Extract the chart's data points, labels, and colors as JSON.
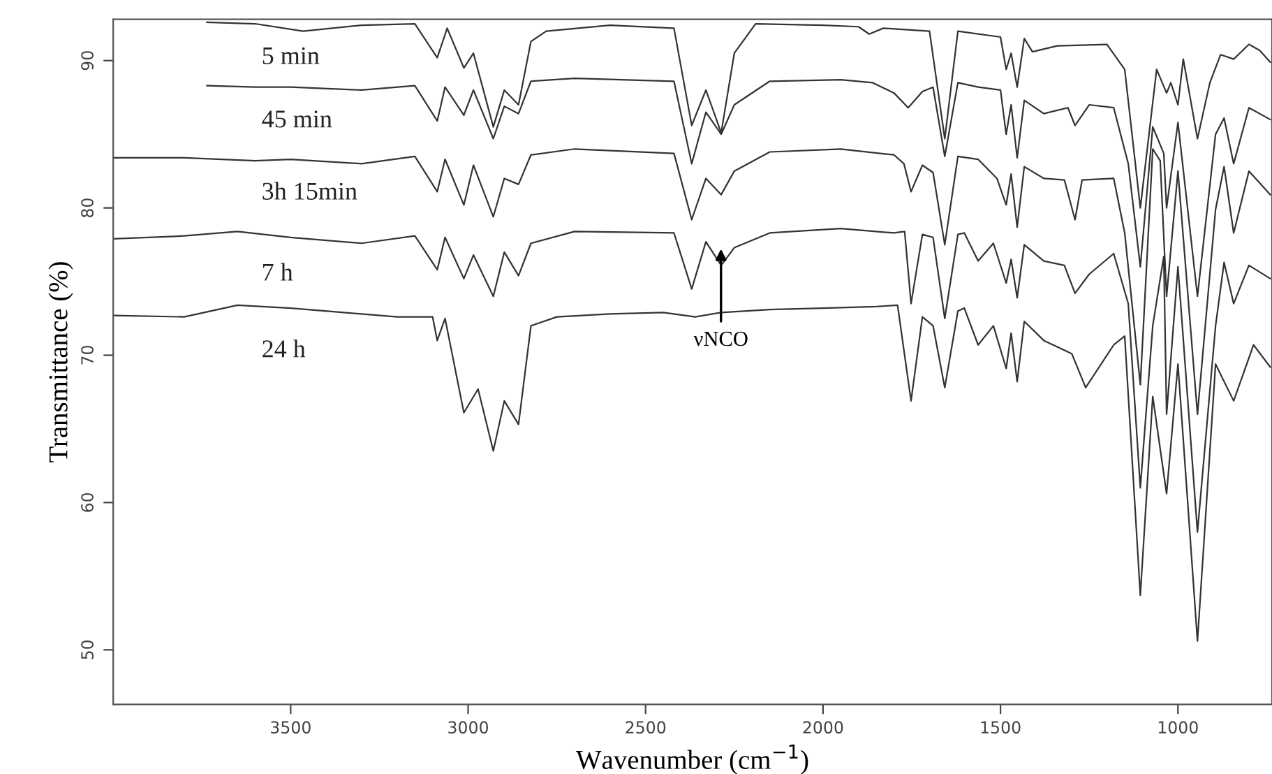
{
  "chart_data": {
    "type": "line",
    "xlabel": "Wavenumber (cm$^{−1}$)",
    "ylabel": "Transmittance (%)",
    "xlim": [
      4000,
      735
    ],
    "ylim": [
      46.3,
      92.8
    ],
    "xticks": [
      3500,
      3000,
      2500,
      2000,
      1500,
      1000
    ],
    "yticks": [
      50,
      60,
      70,
      80,
      90
    ],
    "grid": false,
    "legend": false,
    "marker": "none",
    "line_style": "solid",
    "annotations": [
      "νNCO"
    ],
    "series": [
      {
        "name": "5 min",
        "color": "#333333",
        "x": [
          3736,
          3600,
          3465,
          3300,
          3150,
          3087,
          3059,
          3012,
          2985,
          2929,
          2898,
          2858,
          2823,
          2780,
          2600,
          2420,
          2370,
          2330,
          2287,
          2250,
          2190,
          2000,
          1900,
          1870,
          1830,
          1700,
          1657,
          1620,
          1500,
          1484,
          1470,
          1453,
          1433,
          1410,
          1340,
          1200,
          1150,
          1106,
          1060,
          1032,
          1020,
          1000,
          985,
          945,
          910,
          880,
          843,
          800,
          770,
          740
        ],
        "values": [
          92.6,
          92.5,
          92.0,
          92.4,
          92.5,
          90.2,
          92.2,
          89.5,
          90.5,
          85.5,
          88.0,
          87.0,
          91.3,
          92.0,
          92.4,
          92.2,
          85.6,
          88.0,
          85.1,
          90.5,
          92.5,
          92.4,
          92.3,
          91.8,
          92.2,
          92.0,
          84.7,
          92.0,
          91.6,
          89.4,
          90.5,
          88.2,
          91.5,
          90.6,
          91.0,
          91.1,
          89.4,
          80.0,
          89.4,
          87.8,
          88.5,
          87.0,
          90.1,
          84.7,
          88.5,
          90.4,
          90.1,
          91.1,
          90.7,
          89.9
        ]
      },
      {
        "name": "45 min",
        "color": "#333333",
        "x": [
          3736,
          3600,
          3500,
          3300,
          3150,
          3087,
          3065,
          3012,
          2985,
          2929,
          2898,
          2858,
          2823,
          2700,
          2420,
          2370,
          2330,
          2287,
          2250,
          2150,
          1950,
          1860,
          1800,
          1760,
          1720,
          1690,
          1657,
          1620,
          1563,
          1500,
          1484,
          1470,
          1453,
          1433,
          1378,
          1310,
          1290,
          1250,
          1181,
          1140,
          1106,
          1071,
          1040,
          1032,
          1000,
          945,
          894,
          870,
          843,
          800,
          740
        ],
        "values": [
          88.3,
          88.2,
          88.2,
          88.0,
          88.3,
          85.9,
          88.2,
          86.3,
          88.0,
          84.7,
          86.9,
          86.4,
          88.6,
          88.8,
          88.6,
          83.0,
          86.5,
          85.0,
          87.0,
          88.6,
          88.7,
          88.5,
          87.8,
          86.8,
          87.9,
          88.2,
          83.5,
          88.5,
          88.2,
          88.0,
          85.0,
          87.0,
          83.4,
          87.3,
          86.4,
          86.8,
          85.6,
          87.0,
          86.8,
          83.0,
          76.0,
          85.5,
          83.7,
          80.0,
          85.8,
          74.0,
          85.0,
          86.1,
          83.0,
          86.8,
          86.0
        ]
      },
      {
        "name": "3h 15min",
        "color": "#333333",
        "x": [
          3998,
          3800,
          3600,
          3500,
          3300,
          3150,
          3087,
          3065,
          3012,
          2985,
          2929,
          2898,
          2858,
          2823,
          2700,
          2420,
          2370,
          2330,
          2287,
          2250,
          2150,
          1950,
          1800,
          1772,
          1752,
          1720,
          1690,
          1657,
          1620,
          1563,
          1510,
          1484,
          1470,
          1453,
          1433,
          1378,
          1320,
          1290,
          1270,
          1181,
          1150,
          1106,
          1071,
          1050,
          1032,
          1000,
          945,
          894,
          870,
          843,
          800,
          740
        ],
        "values": [
          83.4,
          83.4,
          83.2,
          83.3,
          83.0,
          83.5,
          81.1,
          83.3,
          80.2,
          82.9,
          79.4,
          82.0,
          81.6,
          83.6,
          84.0,
          83.7,
          79.2,
          82.0,
          80.9,
          82.5,
          83.8,
          84.0,
          83.6,
          83.0,
          81.1,
          82.9,
          82.4,
          77.5,
          83.5,
          83.3,
          82.0,
          80.2,
          82.3,
          78.7,
          82.8,
          82.0,
          81.9,
          79.2,
          81.9,
          82.0,
          78.3,
          68.0,
          84.0,
          83.2,
          74.0,
          82.5,
          66.0,
          79.9,
          82.8,
          78.3,
          82.5,
          80.9
        ]
      },
      {
        "name": "7 h",
        "color": "#333333",
        "x": [
          3998,
          3800,
          3650,
          3500,
          3300,
          3150,
          3087,
          3065,
          3012,
          2985,
          2929,
          2898,
          2858,
          2823,
          2700,
          2420,
          2370,
          2330,
          2287,
          2250,
          2150,
          1950,
          1800,
          1770,
          1752,
          1720,
          1690,
          1657,
          1620,
          1602,
          1563,
          1520,
          1484,
          1470,
          1453,
          1433,
          1378,
          1320,
          1290,
          1250,
          1181,
          1140,
          1106,
          1071,
          1040,
          1032,
          1000,
          945,
          894,
          870,
          843,
          800,
          740
        ],
        "values": [
          77.9,
          78.1,
          78.4,
          78.0,
          77.6,
          78.1,
          75.8,
          78.0,
          75.2,
          76.8,
          74.0,
          77.0,
          75.4,
          77.6,
          78.4,
          78.3,
          74.5,
          77.7,
          76.1,
          77.3,
          78.3,
          78.6,
          78.3,
          78.4,
          73.5,
          78.2,
          78.0,
          72.5,
          78.2,
          78.3,
          76.4,
          77.6,
          74.9,
          76.5,
          73.9,
          77.5,
          76.4,
          76.1,
          74.2,
          75.5,
          76.9,
          73.5,
          61.0,
          72.0,
          76.7,
          66.0,
          76.0,
          58.0,
          72.0,
          76.3,
          73.5,
          76.1,
          75.2
        ]
      },
      {
        "name": "24 h",
        "color": "#333333",
        "x": [
          3998,
          3800,
          3650,
          3500,
          3350,
          3200,
          3100,
          3087,
          3065,
          3012,
          2972,
          2929,
          2898,
          2858,
          2823,
          2750,
          2600,
          2450,
          2360,
          2287,
          2150,
          2000,
          1850,
          1790,
          1752,
          1720,
          1690,
          1657,
          1620,
          1602,
          1563,
          1520,
          1484,
          1470,
          1453,
          1433,
          1378,
          1299,
          1260,
          1181,
          1150,
          1106,
          1071,
          1032,
          1000,
          945,
          894,
          843,
          787,
          740
        ],
        "values": [
          72.7,
          72.6,
          73.4,
          73.2,
          72.9,
          72.6,
          72.6,
          71.0,
          72.5,
          66.1,
          67.7,
          63.5,
          66.9,
          65.3,
          72.0,
          72.6,
          72.8,
          72.9,
          72.6,
          72.9,
          73.1,
          73.2,
          73.3,
          73.4,
          66.9,
          72.6,
          72.0,
          67.8,
          73.0,
          73.2,
          70.7,
          72.0,
          69.1,
          71.5,
          68.2,
          72.3,
          71.0,
          70.1,
          67.8,
          70.7,
          71.3,
          53.7,
          67.2,
          60.6,
          69.4,
          50.6,
          69.4,
          66.9,
          70.7,
          69.2
        ]
      }
    ]
  }
}
